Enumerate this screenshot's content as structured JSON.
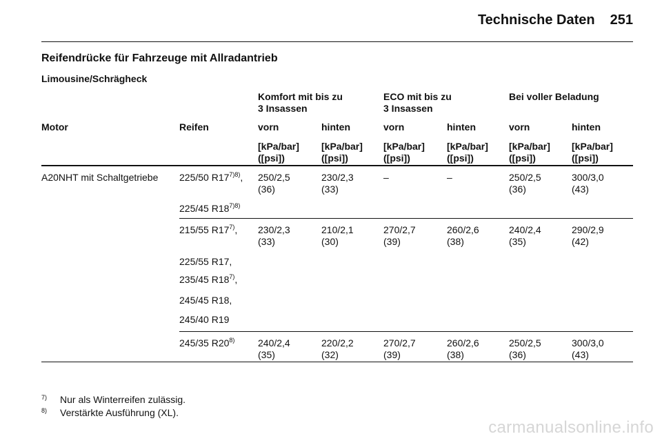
{
  "header": {
    "title": "Technische Daten",
    "page_number": "251"
  },
  "section_title": "Reifendrücke für Fahrzeuge mit Allradantrieb",
  "subsection_title": "Limousine/Schrägheck",
  "table": {
    "groups": [
      {
        "line1": "Komfort mit bis zu",
        "line2": "3 Insassen"
      },
      {
        "line1": "ECO mit bis zu",
        "line2": "3 Insassen"
      },
      {
        "line1": "Bei voller Beladung",
        "line2": ""
      }
    ],
    "col_motor": "Motor",
    "col_tyre": "Reifen",
    "sub_front": "vorn",
    "sub_rear": "hinten",
    "unit_line1": "[kPa/bar]",
    "unit_line2": "([psi])",
    "motor": "A20NHT mit Schaltgetriebe",
    "blocks": [
      {
        "tyres": [
          {
            "text": "225/50 R17",
            "sup": "7)8)",
            "suffix": ","
          },
          {
            "text": "225/45 R18",
            "sup": "7)8)",
            "suffix": ""
          }
        ],
        "values": [
          {
            "v1": "250/2,5",
            "v2": "(36)"
          },
          {
            "v1": "230/2,3",
            "v2": "(33)"
          },
          {
            "v1": "–",
            "v2": ""
          },
          {
            "v1": "–",
            "v2": ""
          },
          {
            "v1": "250/2,5",
            "v2": "(36)"
          },
          {
            "v1": "300/3,0",
            "v2": "(43)"
          }
        ]
      },
      {
        "tyres": [
          {
            "text": "215/55 R17",
            "sup": "7)",
            "suffix": ","
          },
          {
            "text": "225/55 R17,",
            "sup": "",
            "suffix": ""
          },
          {
            "text": "235/45 R18",
            "sup": "7)",
            "suffix": ","
          },
          {
            "text": "245/45 R18,",
            "sup": "",
            "suffix": ""
          },
          {
            "text": "245/40 R19",
            "sup": "",
            "suffix": ""
          }
        ],
        "values": [
          {
            "v1": "230/2,3",
            "v2": "(33)"
          },
          {
            "v1": "210/2,1",
            "v2": "(30)"
          },
          {
            "v1": "270/2,7",
            "v2": "(39)"
          },
          {
            "v1": "260/2,6",
            "v2": "(38)"
          },
          {
            "v1": "240/2,4",
            "v2": "(35)"
          },
          {
            "v1": "290/2,9",
            "v2": "(42)"
          }
        ]
      },
      {
        "tyres": [
          {
            "text": "245/35 R20",
            "sup": "8)",
            "suffix": ""
          }
        ],
        "values": [
          {
            "v1": "240/2,4",
            "v2": "(35)"
          },
          {
            "v1": "220/2,2",
            "v2": "(32)"
          },
          {
            "v1": "270/2,7",
            "v2": "(39)"
          },
          {
            "v1": "260/2,6",
            "v2": "(38)"
          },
          {
            "v1": "250/2,5",
            "v2": "(36)"
          },
          {
            "v1": "300/3,0",
            "v2": "(43)"
          }
        ]
      }
    ]
  },
  "footnotes": [
    {
      "mark": "7)",
      "text": "Nur als Winterreifen zulässig."
    },
    {
      "mark": "8)",
      "text": "Verstärkte Ausführung (XL)."
    }
  ],
  "watermark": "carmanualsonline.info"
}
